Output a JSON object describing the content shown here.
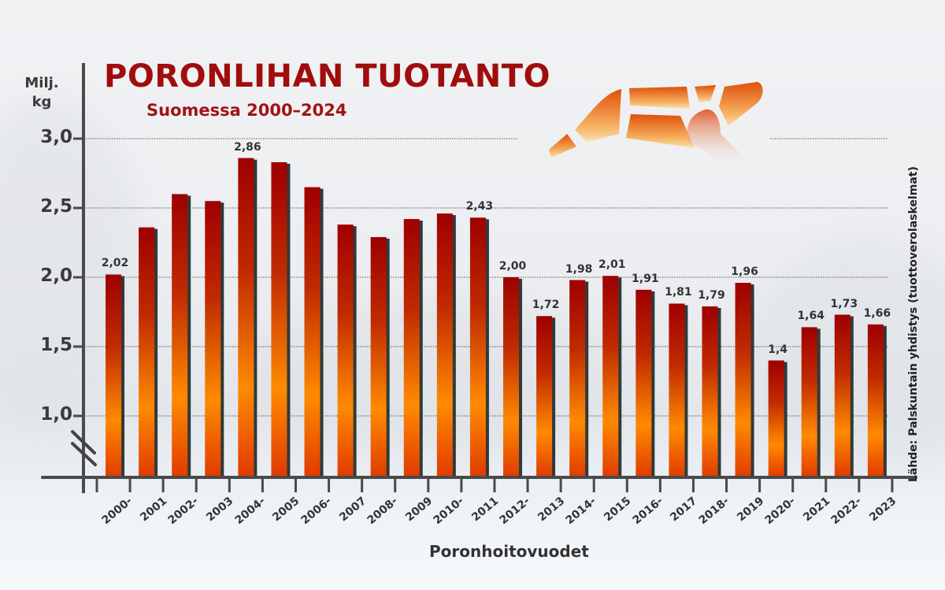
{
  "header": {
    "title": "PORONLIHAN TUOTANTO",
    "subtitle": "Suomessa 2000–2024"
  },
  "axis": {
    "y_unit_line1": "Milj.",
    "y_unit_line2": "kg",
    "x_title": "Poronhoitovuodet"
  },
  "source": "Lähde: Palskuntain yhdistys (tuottoverolaskelmat)",
  "colors": {
    "title": "#a00d0d",
    "bar_top": "#9e0000",
    "bar_mid": "#ff8a00",
    "bar_bottom": "#e03a00",
    "shadow": "#2f3a3a",
    "axis": "#4a4a4a"
  },
  "chart_data": {
    "type": "bar",
    "title": "PORONLIHAN TUOTANTO",
    "subtitle": "Suomessa 2000–2024",
    "xlabel": "Poronhoitovuodet",
    "ylabel": "Milj. kg",
    "ylim": [
      1.0,
      3.0
    ],
    "y_axis_broken": true,
    "yticks": [
      "1,0",
      "1,5",
      "2,0",
      "2,5",
      "3,0"
    ],
    "grid": "horizontal dotted",
    "categories": [
      "2000-2001",
      "2001-2002",
      "2002-2003",
      "2003-2004",
      "2004-2005",
      "2005-2006",
      "2006-2007",
      "2007-2008",
      "2008-2009",
      "2009-2010",
      "2010-2011",
      "2011-2012",
      "2012-2013",
      "2013-2014",
      "2014-2015",
      "2015-2016",
      "2016-2017",
      "2017-2018",
      "2018-2019",
      "2019-2020",
      "2020-2021",
      "2021-2022",
      "2022-2023",
      "2023-2024"
    ],
    "values": [
      2.02,
      2.36,
      2.6,
      2.55,
      2.86,
      2.83,
      2.65,
      2.38,
      2.29,
      2.42,
      2.46,
      2.43,
      2.0,
      1.72,
      1.98,
      2.01,
      1.91,
      1.81,
      1.79,
      1.96,
      1.4,
      1.64,
      1.73,
      1.66
    ],
    "value_labels": [
      "2,02",
      "",
      "",
      "",
      "2,86",
      "",
      "",
      "",
      "",
      "",
      "",
      "2,43",
      "2,00",
      "1,72",
      "1,98",
      "2,01",
      "1,91",
      "1,81",
      "1,79",
      "1,96",
      "1,4",
      "1,64",
      "1,73",
      "1,66"
    ],
    "xtick_labels": [
      {
        "top": "2000-",
        "bottom": "2001"
      },
      {
        "top": "2002-",
        "bottom": "2003"
      },
      {
        "top": "2004-",
        "bottom": "2005"
      },
      {
        "top": "2006-",
        "bottom": "2007"
      },
      {
        "top": "2008-",
        "bottom": "2009"
      },
      {
        "top": "2010-",
        "bottom": "2011"
      },
      {
        "top": "2012-",
        "bottom": "2013"
      },
      {
        "top": "2014-",
        "bottom": "2015"
      },
      {
        "top": "2016-",
        "bottom": "2017"
      },
      {
        "top": "2018-",
        "bottom": "2019"
      },
      {
        "top": "2020-",
        "bottom": "2021"
      },
      {
        "top": "2022-",
        "bottom": "2023"
      }
    ]
  }
}
